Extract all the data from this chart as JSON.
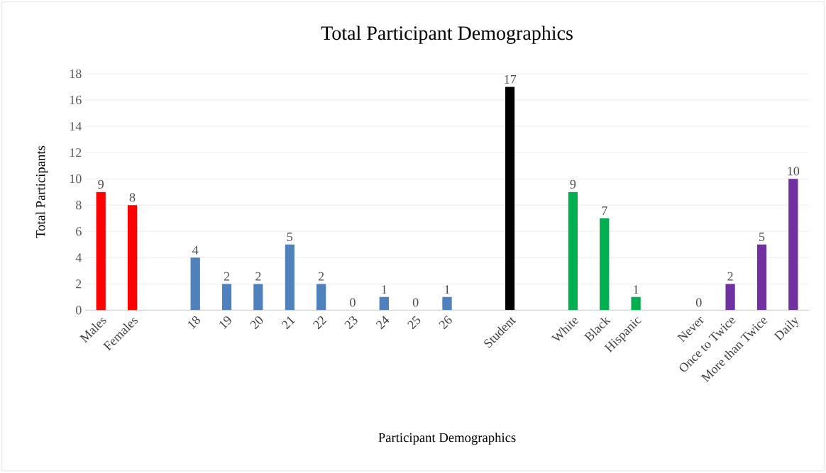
{
  "chart_data": {
    "type": "bar",
    "title": "Total Participant Demographics",
    "xlabel": "Participant Demographics",
    "ylabel": "Total Participants",
    "categories": [
      "Males",
      "Females",
      null,
      "18",
      "19",
      "20",
      "21",
      "22",
      "23",
      "24",
      "25",
      "26",
      null,
      "Student",
      null,
      "White",
      "Black",
      "Hispanic",
      null,
      "Never",
      "Once to Twice",
      "More than Twice",
      "Daily"
    ],
    "values": [
      9,
      8,
      null,
      4,
      2,
      2,
      5,
      2,
      0,
      1,
      0,
      1,
      null,
      17,
      null,
      9,
      7,
      1,
      null,
      0,
      2,
      5,
      10
    ],
    "colors": [
      "#ff0000",
      "#ff0000",
      "#ffffff",
      "#4f81bd",
      "#4f81bd",
      "#4f81bd",
      "#4f81bd",
      "#4f81bd",
      "#4f81bd",
      "#4f81bd",
      "#4f81bd",
      "#4f81bd",
      "#ffffff",
      "#000000",
      "#ffffff",
      "#00b050",
      "#00b050",
      "#00b050",
      "#ffffff",
      "#7030a0",
      "#7030a0",
      "#7030a0",
      "#7030a0"
    ],
    "ylim": [
      0,
      18
    ],
    "yticks": [
      0,
      2,
      4,
      6,
      8,
      10,
      12,
      14,
      16,
      18
    ],
    "grid": "y",
    "data_labels": true
  }
}
